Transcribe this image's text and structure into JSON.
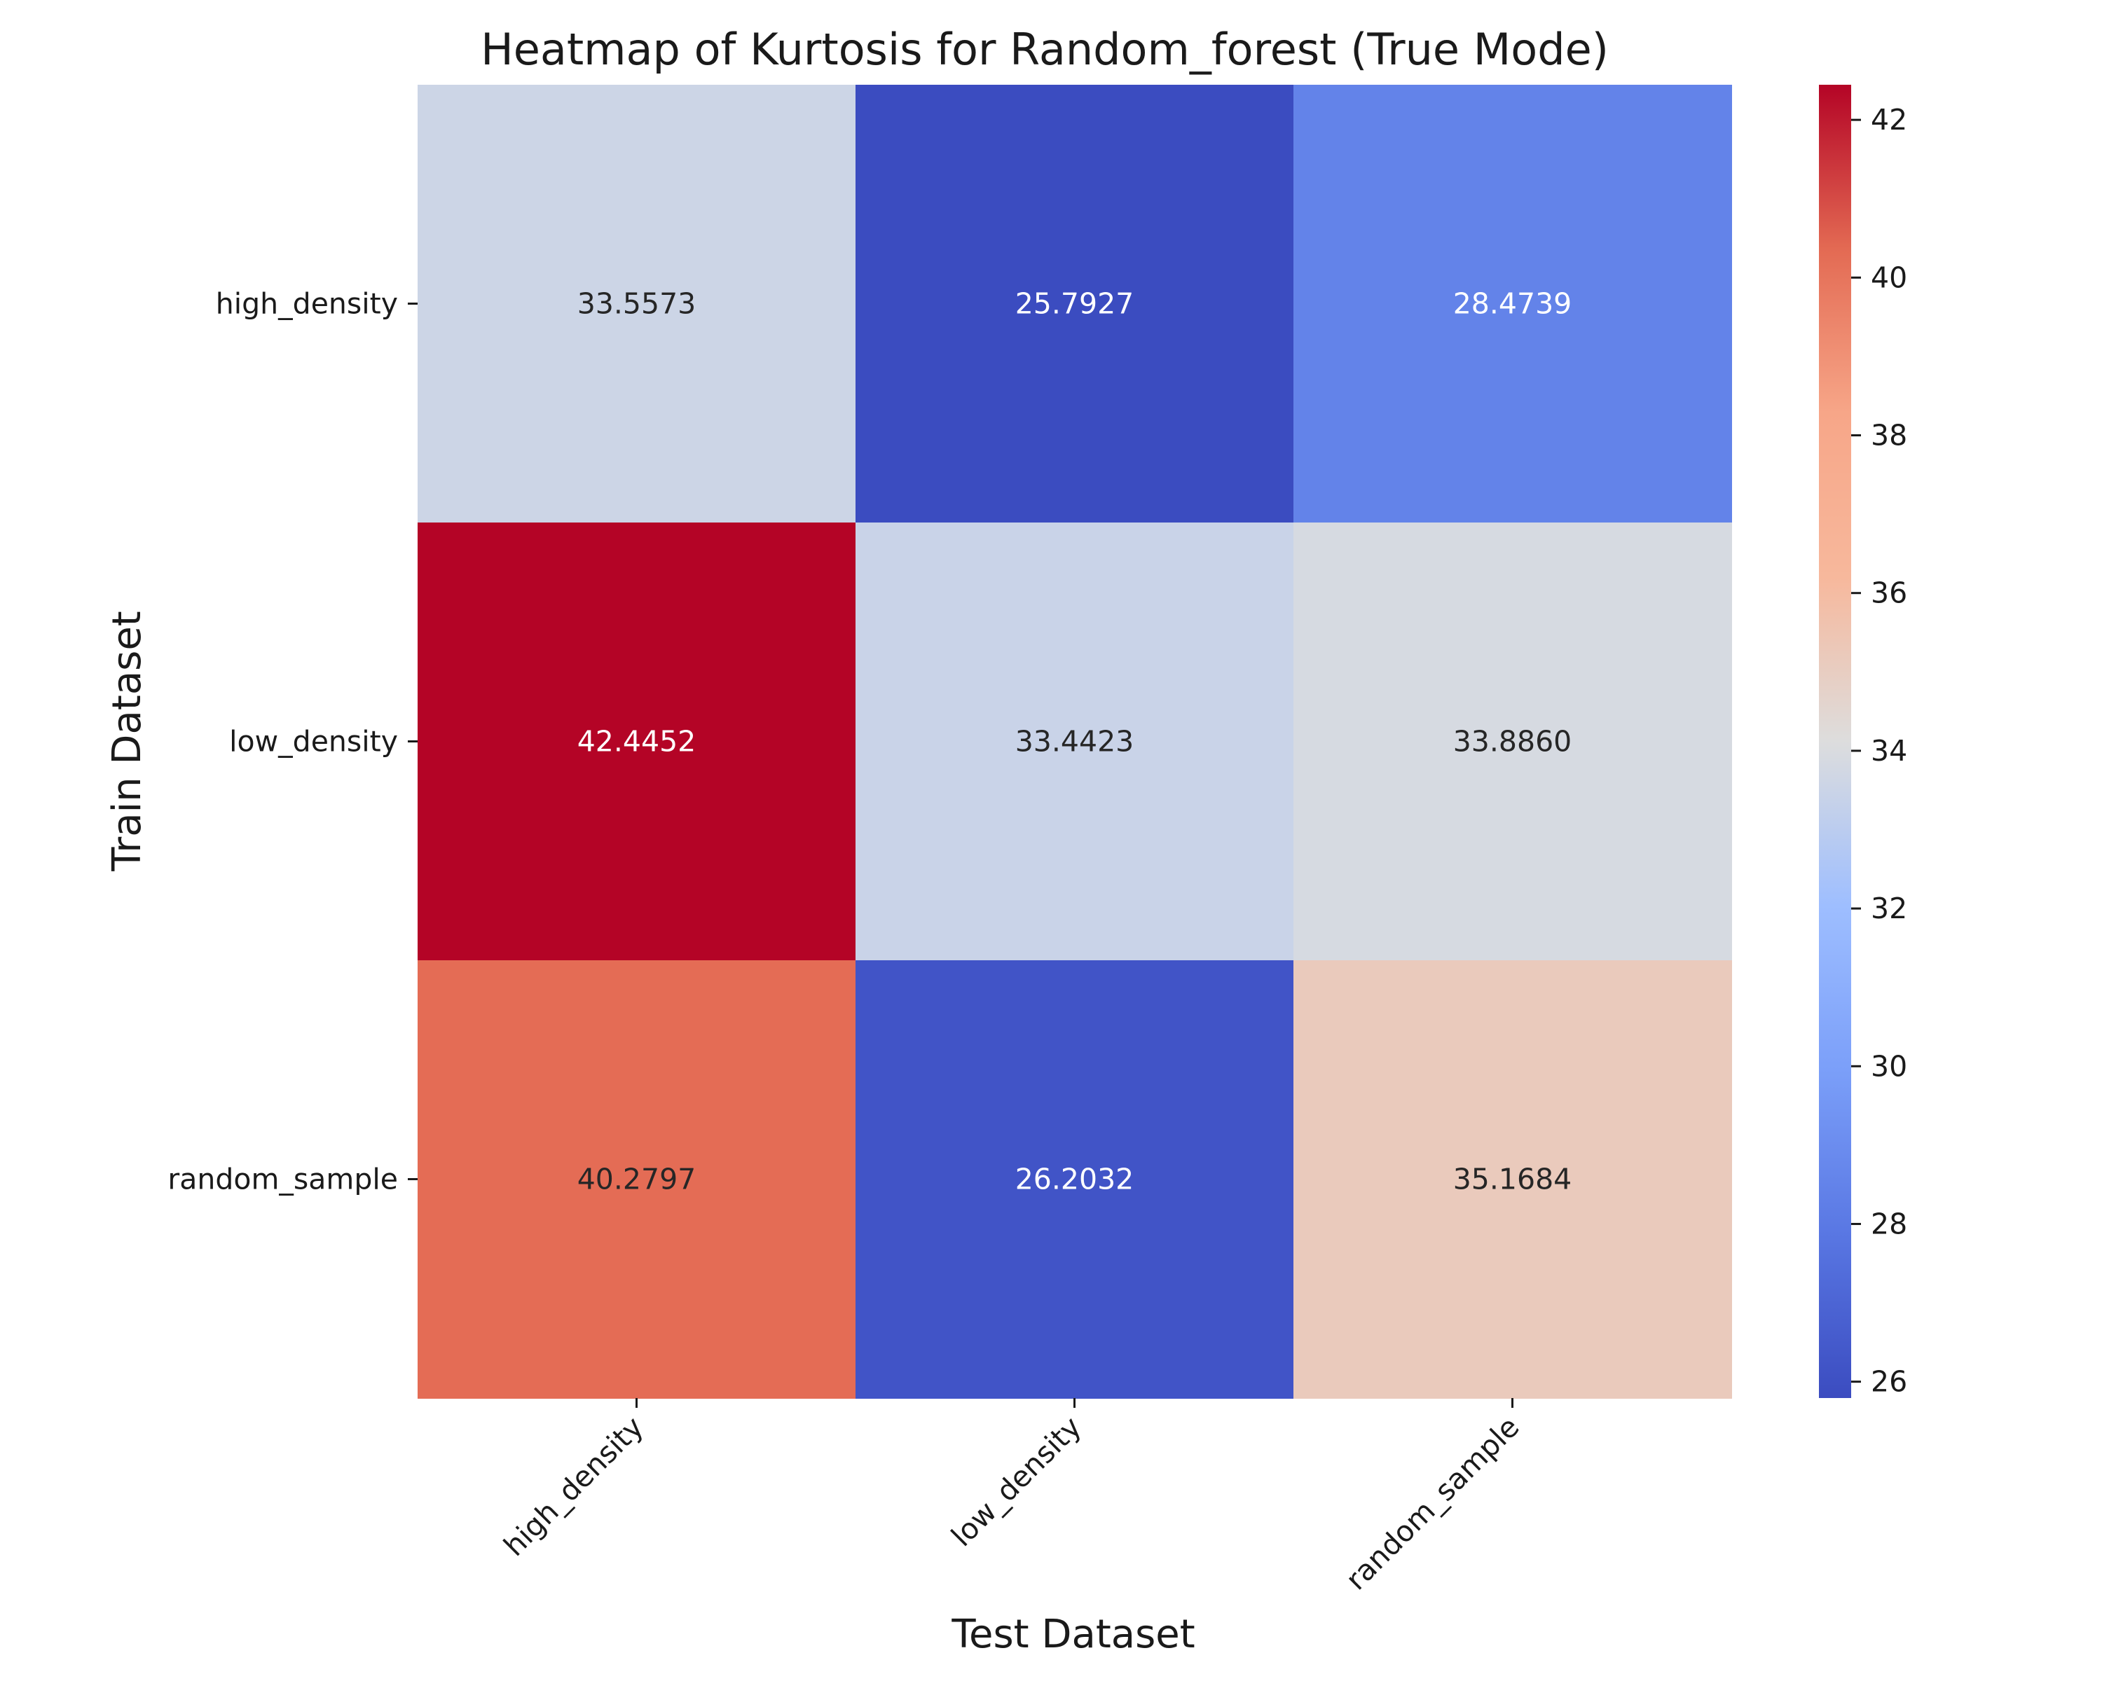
{
  "chart_data": {
    "type": "heatmap",
    "title": "Heatmap of Kurtosis for Random_forest (True Mode)",
    "xlabel": "Test Dataset",
    "ylabel": "Train Dataset",
    "x_categories": [
      "high_density",
      "low_density",
      "random_sample"
    ],
    "y_categories": [
      "high_density",
      "low_density",
      "random_sample"
    ],
    "values": [
      [
        33.5573,
        25.7927,
        28.4739
      ],
      [
        42.4452,
        33.4423,
        33.886
      ],
      [
        40.2797,
        26.2032,
        35.1684
      ]
    ],
    "value_labels": [
      [
        "33.5573",
        "25.7927",
        "28.4739"
      ],
      [
        "42.4452",
        "33.4423",
        "33.8860"
      ],
      [
        "40.2797",
        "26.2032",
        "35.1684"
      ]
    ],
    "colormap": "coolwarm",
    "vmin": 25.7927,
    "vmax": 42.4452,
    "colorbar_ticks": [
      "26",
      "28",
      "30",
      "32",
      "34",
      "36",
      "38",
      "40",
      "42"
    ],
    "colors": {
      "cmap_low": "#3b4cc0",
      "cmap_mid": "#dddddd",
      "cmap_high": "#b40426",
      "label_dark": "#262626",
      "label_light": "#ffffff"
    }
  }
}
